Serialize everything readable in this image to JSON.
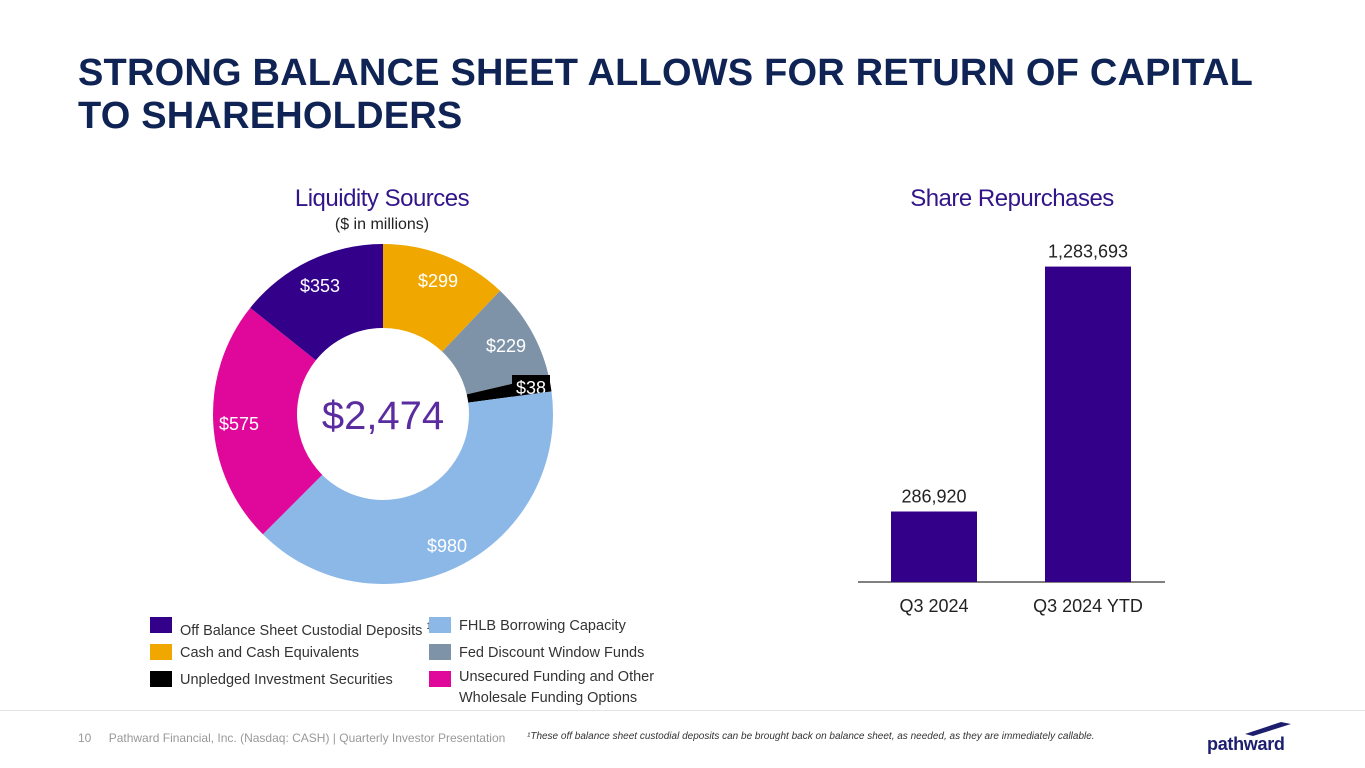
{
  "page": {
    "title": "STRONG BALANCE SHEET ALLOWS FOR RETURN OF CAPITAL TO SHAREHOLDERS"
  },
  "chart_data": [
    {
      "type": "pie",
      "variant": "donut",
      "title": "Liquidity Sources",
      "subtitle": "($ in millions)",
      "center_label": "$2,474",
      "slices": [
        {
          "name": "Cash and Cash Equivalents",
          "value": 299,
          "label": "$299",
          "color": "#f0a800"
        },
        {
          "name": "Fed Discount Window Funds",
          "value": 229,
          "label": "$229",
          "color": "#7f93a8"
        },
        {
          "name": "Unpledged Investment Securities",
          "value": 38,
          "label": "$38",
          "color": "#000000"
        },
        {
          "name": "FHLB Borrowing Capacity",
          "value": 980,
          "label": "$980",
          "color": "#8cb8e8"
        },
        {
          "name": "Unsecured Funding and Other Wholesale Funding Options",
          "value": 575,
          "label": "$575",
          "color": "#e0089a"
        },
        {
          "name": "Off Balance Sheet Custodial Deposits",
          "value": 353,
          "label": "$353",
          "color": "#33008a"
        }
      ]
    },
    {
      "type": "bar",
      "title": "Share Repurchases",
      "categories": [
        "Q3 2024",
        "Q3 2024 YTD"
      ],
      "values": [
        286920,
        1283693
      ],
      "value_labels": [
        "286,920",
        "1,283,693"
      ],
      "bar_color": "#33008a",
      "ylim": [
        0,
        1400000
      ],
      "xlabel": "",
      "ylabel": ""
    }
  ],
  "legend": [
    {
      "label": "Off Balance Sheet Custodial Deposits",
      "sup": "1",
      "color": "#33008a"
    },
    {
      "label": "Cash and Cash Equivalents",
      "sup": "",
      "color": "#f0a800"
    },
    {
      "label": "Unpledged Investment Securities",
      "sup": "",
      "color": "#000000"
    },
    {
      "label": "FHLB Borrowing Capacity",
      "sup": "",
      "color": "#8cb8e8"
    },
    {
      "label": "Fed Discount Window Funds",
      "sup": "",
      "color": "#7f93a8"
    },
    {
      "label": "Unsecured Funding and Other Wholesale Funding Options",
      "sup": "",
      "color": "#e0089a"
    }
  ],
  "footer": {
    "page_number": "10",
    "company": "Pathward Financial, Inc. (Nasdaq: CASH) | Quarterly Investor Presentation",
    "footnote": "¹These off balance sheet custodial deposits can be brought back on balance sheet, as needed, as they are immediately callable.",
    "logo_text": "pathward"
  }
}
